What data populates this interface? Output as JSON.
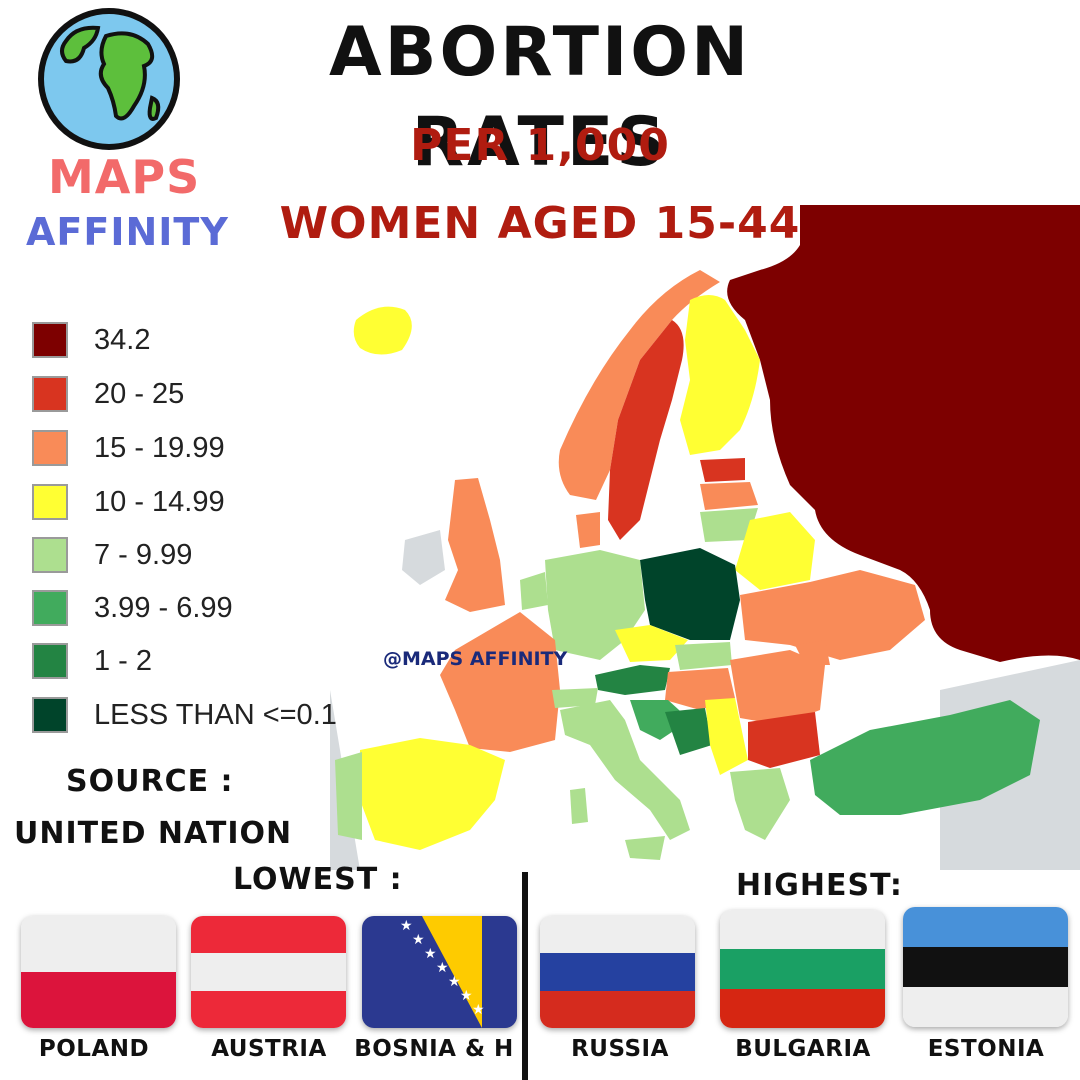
{
  "title": "ABORTION RATES",
  "subtitle_line1": "PER 1,000",
  "subtitle_line2": "WOMEN AGED 15-44",
  "brand": {
    "maps": "MAPS",
    "affinity": "AFFINITY",
    "logo_icon": "globe-icon"
  },
  "legend": [
    {
      "label": "34.2",
      "color": "#7d0000"
    },
    {
      "label": "20 - 25",
      "color": "#d83420"
    },
    {
      "label": "15 - 19.99",
      "color": "#f98b58"
    },
    {
      "label": "10 - 14.99",
      "color": "#ffff33"
    },
    {
      "label": "7 - 9.99",
      "color": "#addf8f"
    },
    {
      "label": "3.99 - 6.99",
      "color": "#41ab5d"
    },
    {
      "label": "1 - 2",
      "color": "#238443"
    },
    {
      "label": "LESS THAN <=0.1",
      "color": "#00442a"
    }
  ],
  "source_label": "SOURCE :",
  "source_value": "UNITED NATION",
  "watermark": "@MAPS AFFINITY",
  "lowest_label": "LOWEST :",
  "highest_label": "HIGHEST:",
  "lowest": [
    {
      "name": "POLAND",
      "flag": "poland-flag"
    },
    {
      "name": "AUSTRIA",
      "flag": "austria-flag"
    },
    {
      "name": "BOSNIA & H",
      "flag": "bosnia-flag"
    }
  ],
  "highest": [
    {
      "name": "RUSSIA",
      "flag": "russia-flag"
    },
    {
      "name": "BULGARIA",
      "flag": "bulgaria-flag"
    },
    {
      "name": "ESTONIA",
      "flag": "estonia-flag"
    }
  ],
  "map_colors": {
    "russia": "#7d0000",
    "poland": "#00442a",
    "austria": "#238443",
    "bosnia": "#238443",
    "sea": "#ffffff",
    "non_data_land": "#d6dadd"
  }
}
